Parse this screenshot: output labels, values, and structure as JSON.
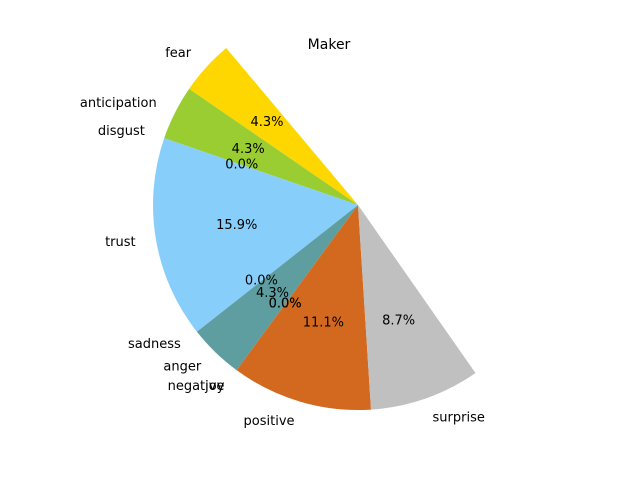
{
  "chart_data": {
    "type": "pie",
    "title": "Maker",
    "start_angle_deg": 130,
    "direction": "counterclockwise",
    "full_circle": false,
    "slices": [
      {
        "label": "fear",
        "pct": 4.3,
        "pct_label": "4.3%",
        "color": "#FFD700"
      },
      {
        "label": "anticipation",
        "pct": 4.3,
        "pct_label": "4.3%",
        "color": "#9ACD32"
      },
      {
        "label": "disgust",
        "pct": 0.0,
        "pct_label": "0.0%",
        "color": "#D2B48C"
      },
      {
        "label": "trust",
        "pct": 15.9,
        "pct_label": "15.9%",
        "color": "#87CEFA"
      },
      {
        "label": "sadness",
        "pct": 0.0,
        "pct_label": "0.0%",
        "color": "#4682B4"
      },
      {
        "label": "anger",
        "pct": 4.3,
        "pct_label": "4.3%",
        "color": "#5F9EA0"
      },
      {
        "label": "negative",
        "pct": 0.0,
        "pct_label": "0.0%",
        "color": "#8B0000"
      },
      {
        "label": "joy",
        "pct": 0.0,
        "pct_label": "0.0%",
        "color": "#FF69B4"
      },
      {
        "label": "positive",
        "pct": 11.1,
        "pct_label": "11.1%",
        "color": "#D2691E"
      },
      {
        "label": "surprise",
        "pct": 8.7,
        "pct_label": "8.7%",
        "color": "#C0C0C0"
      }
    ]
  }
}
